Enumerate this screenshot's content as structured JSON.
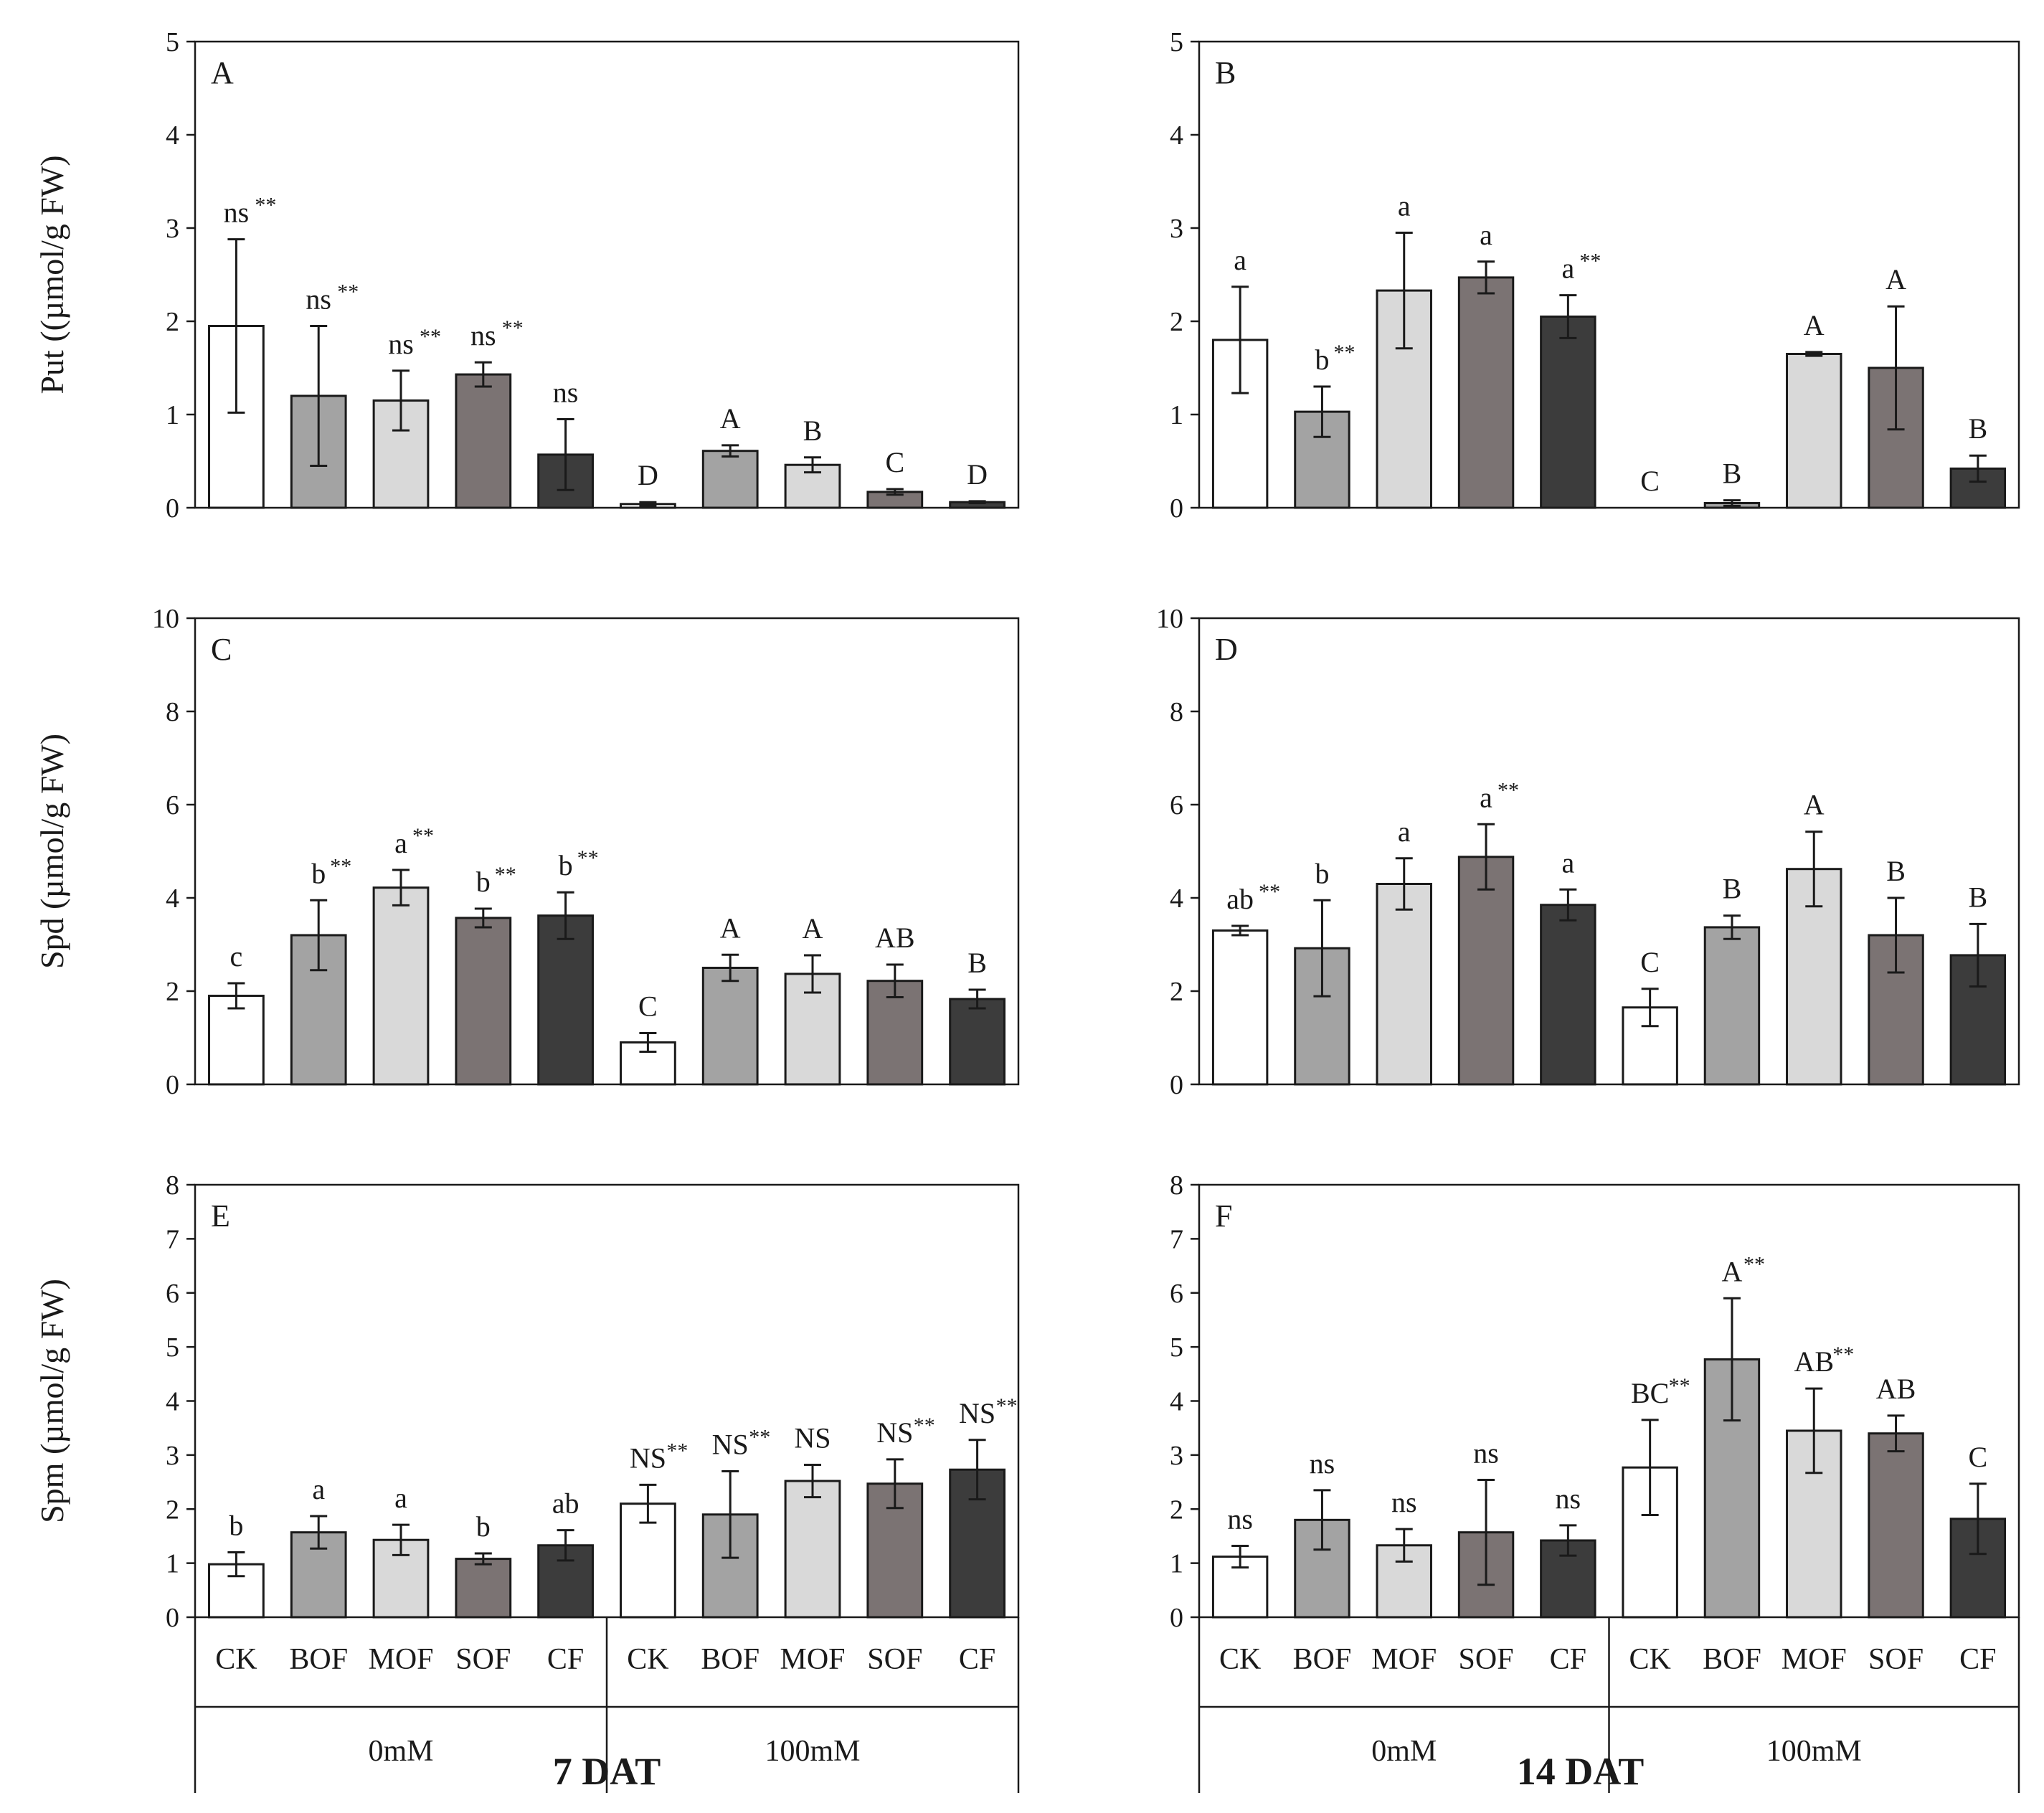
{
  "colors": {
    "ck": "#ffffff",
    "bof": "#a3a3a3",
    "mof": "#d9d9d9",
    "sof": "#7b7373",
    "cf": "#3c3c3c",
    "outline": "#1a1a1a"
  },
  "categories": [
    "CK",
    "BOF",
    "MOF",
    "SOF",
    "CF",
    "CK",
    "BOF",
    "MOF",
    "SOF",
    "CF"
  ],
  "groups": [
    "0mM",
    "100mM"
  ],
  "days": [
    "7 DAT",
    "14 DAT"
  ],
  "chart_data": [
    {
      "panel": "A",
      "type": "bar",
      "ylabel": "Put ((µmol/g FW)",
      "ylim": [
        0,
        5
      ],
      "yticks": [
        0,
        1,
        2,
        3,
        4,
        5
      ],
      "values": [
        1.95,
        1.2,
        1.15,
        1.43,
        0.57,
        0.04,
        0.61,
        0.46,
        0.17,
        0.06
      ],
      "errors": [
        0.93,
        0.75,
        0.32,
        0.13,
        0.38,
        0.02,
        0.06,
        0.08,
        0.03,
        0.01
      ],
      "labels": [
        "ns",
        "ns",
        "ns",
        "ns",
        "ns",
        "D",
        "A",
        "B",
        "C",
        "D"
      ],
      "stars": [
        "**",
        "**",
        "**",
        "**",
        "",
        "",
        "",
        "",
        "",
        ""
      ]
    },
    {
      "panel": "B",
      "type": "bar",
      "ylabel": "",
      "ylim": [
        0,
        5
      ],
      "yticks": [
        0,
        1,
        2,
        3,
        4,
        5
      ],
      "values": [
        1.8,
        1.03,
        2.33,
        2.47,
        2.05,
        0.0,
        0.05,
        1.65,
        1.5,
        0.42
      ],
      "errors": [
        0.57,
        0.27,
        0.62,
        0.17,
        0.23,
        0.0,
        0.03,
        0.02,
        0.66,
        0.14
      ],
      "labels": [
        "a",
        "b",
        "a",
        "a",
        "a",
        "C",
        "B",
        "A",
        "A",
        "B"
      ],
      "stars": [
        "",
        "**",
        "",
        "",
        "**",
        "",
        "",
        "",
        "",
        ""
      ]
    },
    {
      "panel": "C",
      "type": "bar",
      "ylabel": "Spd (µmol/g FW)",
      "ylim": [
        0,
        10
      ],
      "yticks": [
        0,
        2,
        4,
        6,
        8,
        10
      ],
      "values": [
        1.9,
        3.2,
        4.22,
        3.57,
        3.62,
        0.9,
        2.5,
        2.37,
        2.22,
        1.83
      ],
      "errors": [
        0.27,
        0.75,
        0.38,
        0.2,
        0.5,
        0.2,
        0.28,
        0.4,
        0.35,
        0.2
      ],
      "labels": [
        "c",
        "b",
        "a",
        "b",
        "b",
        "C",
        "A",
        "A",
        "AB",
        "B"
      ],
      "stars": [
        "",
        "**",
        "**",
        "**",
        "**",
        "",
        "",
        "",
        "",
        ""
      ]
    },
    {
      "panel": "D",
      "type": "bar",
      "ylabel": "",
      "ylim": [
        0,
        10
      ],
      "yticks": [
        0,
        2,
        4,
        6,
        8,
        10
      ],
      "values": [
        3.3,
        2.92,
        4.3,
        4.88,
        3.85,
        1.65,
        3.37,
        4.62,
        3.2,
        2.77
      ],
      "errors": [
        0.1,
        1.03,
        0.55,
        0.7,
        0.33,
        0.4,
        0.25,
        0.8,
        0.8,
        0.67
      ],
      "labels": [
        "ab",
        "b",
        "a",
        "a",
        "a",
        "C",
        "B",
        "A",
        "B",
        "B"
      ],
      "stars": [
        "**",
        "",
        "",
        "**",
        "",
        "",
        "",
        "",
        "",
        ""
      ]
    },
    {
      "panel": "E",
      "type": "bar",
      "ylabel": "Spm (µmol/g FW)",
      "ylim": [
        0,
        8
      ],
      "yticks": [
        0,
        1,
        2,
        3,
        4,
        5,
        6,
        7,
        8
      ],
      "values": [
        0.98,
        1.57,
        1.43,
        1.08,
        1.33,
        2.1,
        1.9,
        2.52,
        2.47,
        2.73
      ],
      "errors": [
        0.22,
        0.3,
        0.28,
        0.1,
        0.28,
        0.35,
        0.8,
        0.3,
        0.45,
        0.55
      ],
      "labels": [
        "b",
        "a",
        "a",
        "b",
        "ab",
        "NS",
        "NS",
        "NS",
        "NS",
        "NS"
      ],
      "stars": [
        "",
        "",
        "",
        "",
        "",
        "**",
        "**",
        "",
        "**",
        "**"
      ]
    },
    {
      "panel": "F",
      "type": "bar",
      "ylabel": "",
      "ylim": [
        0,
        8
      ],
      "yticks": [
        0,
        1,
        2,
        3,
        4,
        5,
        6,
        7,
        8
      ],
      "values": [
        1.12,
        1.8,
        1.33,
        1.57,
        1.42,
        2.77,
        4.77,
        3.45,
        3.4,
        1.82
      ],
      "errors": [
        0.2,
        0.55,
        0.3,
        0.97,
        0.28,
        0.88,
        1.13,
        0.78,
        0.33,
        0.65
      ],
      "labels": [
        "ns",
        "ns",
        "ns",
        "ns",
        "ns",
        "BC",
        "A",
        "AB",
        "AB",
        "C"
      ],
      "stars": [
        "",
        "",
        "",
        "",
        "",
        "**",
        "**",
        "**",
        "",
        ""
      ]
    }
  ]
}
